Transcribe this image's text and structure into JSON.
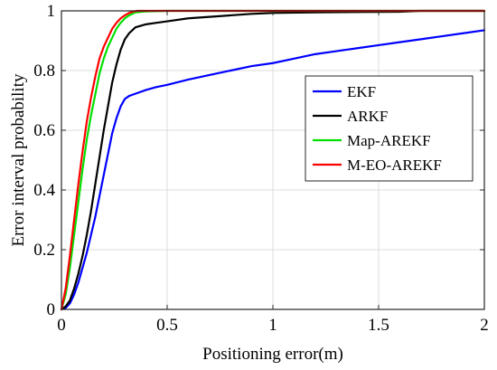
{
  "chart_data": {
    "type": "line",
    "title": "",
    "xlabel": "Positioning error(m)",
    "ylabel": "Error interval probability",
    "xlim": [
      0,
      2
    ],
    "ylim": [
      0,
      1
    ],
    "x_ticks": [
      "0",
      "0.5",
      "1",
      "1.5",
      "2"
    ],
    "y_ticks": [
      "0",
      "0.2",
      "0.4",
      "0.6",
      "0.8",
      "1"
    ],
    "x_tick_values": [
      0,
      0.5,
      1,
      1.5,
      2
    ],
    "y_tick_values": [
      0,
      0.2,
      0.4,
      0.6,
      0.8,
      1
    ],
    "grid": true,
    "legend_position": "right",
    "series": [
      {
        "name": "EKF",
        "color": "#0000ff",
        "x": [
          0,
          0.02,
          0.04,
          0.06,
          0.08,
          0.1,
          0.12,
          0.14,
          0.16,
          0.18,
          0.2,
          0.22,
          0.24,
          0.26,
          0.28,
          0.3,
          0.32,
          0.34,
          0.36,
          0.4,
          0.45,
          0.5,
          0.6,
          0.7,
          0.8,
          0.9,
          1.0,
          1.1,
          1.2,
          1.3,
          1.4,
          1.5,
          1.6,
          1.7,
          1.8,
          1.9,
          2.0
        ],
        "y": [
          0,
          0.005,
          0.02,
          0.05,
          0.09,
          0.14,
          0.19,
          0.25,
          0.31,
          0.38,
          0.45,
          0.52,
          0.59,
          0.64,
          0.68,
          0.705,
          0.715,
          0.72,
          0.725,
          0.735,
          0.745,
          0.752,
          0.77,
          0.785,
          0.8,
          0.815,
          0.825,
          0.84,
          0.855,
          0.865,
          0.875,
          0.885,
          0.895,
          0.905,
          0.915,
          0.925,
          0.935
        ]
      },
      {
        "name": "ARKF",
        "color": "#000000",
        "x": [
          0,
          0.02,
          0.04,
          0.06,
          0.08,
          0.1,
          0.12,
          0.14,
          0.16,
          0.18,
          0.2,
          0.22,
          0.24,
          0.26,
          0.28,
          0.3,
          0.32,
          0.35,
          0.4,
          0.45,
          0.5,
          0.6,
          0.7,
          0.8,
          0.9,
          1.0,
          1.2,
          1.4,
          1.6,
          1.7,
          2.0
        ],
        "y": [
          0,
          0.01,
          0.03,
          0.07,
          0.12,
          0.18,
          0.25,
          0.33,
          0.42,
          0.51,
          0.6,
          0.68,
          0.76,
          0.82,
          0.87,
          0.905,
          0.925,
          0.945,
          0.955,
          0.96,
          0.965,
          0.975,
          0.98,
          0.985,
          0.99,
          0.993,
          0.995,
          0.996,
          0.997,
          1.0,
          1.0
        ]
      },
      {
        "name": "Map-AREKF",
        "color": "#00e000",
        "x": [
          0,
          0.02,
          0.04,
          0.06,
          0.08,
          0.1,
          0.12,
          0.14,
          0.16,
          0.18,
          0.2,
          0.22,
          0.24,
          0.26,
          0.28,
          0.3,
          0.32,
          0.35,
          0.4,
          0.5,
          1.0,
          2.0
        ],
        "y": [
          0,
          0.05,
          0.14,
          0.25,
          0.36,
          0.47,
          0.57,
          0.65,
          0.72,
          0.79,
          0.84,
          0.88,
          0.91,
          0.94,
          0.96,
          0.975,
          0.985,
          0.995,
          0.998,
          1.0,
          1.0,
          1.0
        ]
      },
      {
        "name": "M-EO-AREKF",
        "color": "#ff0000",
        "x": [
          0,
          0.02,
          0.04,
          0.06,
          0.08,
          0.1,
          0.12,
          0.14,
          0.16,
          0.18,
          0.2,
          0.22,
          0.24,
          0.26,
          0.28,
          0.3,
          0.32,
          0.34,
          0.36,
          0.5,
          1.0,
          2.0
        ],
        "y": [
          0,
          0.07,
          0.18,
          0.3,
          0.42,
          0.53,
          0.63,
          0.71,
          0.78,
          0.84,
          0.88,
          0.91,
          0.94,
          0.96,
          0.975,
          0.985,
          0.993,
          0.998,
          1.0,
          1.0,
          1.0,
          1.0
        ]
      }
    ]
  }
}
